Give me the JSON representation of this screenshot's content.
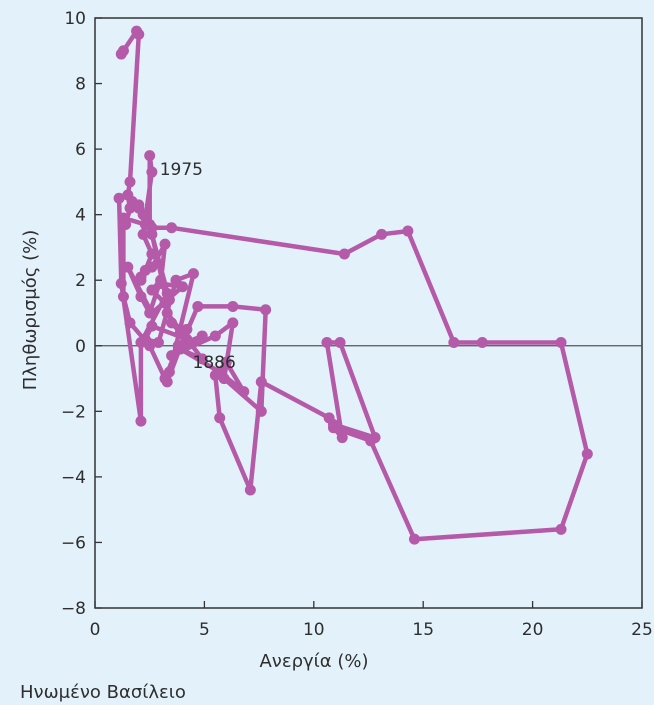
{
  "chart_data": {
    "type": "line",
    "title": "",
    "xlabel": "Ανεργία (%)",
    "ylabel": "Πληθωρισμός (%)",
    "xlim": [
      0,
      25
    ],
    "ylim": [
      -8,
      10
    ],
    "x_ticks": [
      0,
      5,
      10,
      15,
      20,
      25
    ],
    "y_ticks": [
      -8,
      -6,
      -4,
      -2,
      0,
      2,
      4,
      6,
      8,
      10
    ],
    "grid": false,
    "reference_line_y": 0,
    "footer": "Ηνωμένο Βασίλειο",
    "colors": {
      "series": "#b55aa8",
      "background": "#e3f2fa",
      "axis": "#333333"
    },
    "annotations": [
      {
        "text": "1975",
        "x": 2.5,
        "y": 5.4
      },
      {
        "text": "1886",
        "x": 4.0,
        "y": -0.5
      }
    ],
    "series": [
      {
        "x": [
          1.2,
          1.3,
          1.9,
          2.0,
          1.6,
          1.5,
          1.6,
          1.4,
          1.7,
          2.0,
          2.5,
          2.5,
          2.6,
          2.2,
          2.6,
          2.3,
          2.1,
          2.1,
          2.6,
          3.2,
          3.0,
          4.0,
          2.6,
          1.5,
          2.1,
          2.5,
          3.0,
          2.6,
          3.2,
          3.4,
          2.6,
          3.5,
          3.9,
          4.2,
          2.6,
          2.3,
          2.9,
          3.7,
          4.5,
          3.3,
          4.2,
          3.4,
          4.7,
          6.3,
          7.8,
          7.6,
          5.9,
          6.3,
          5.5,
          3.5,
          4.9,
          3.8,
          3.2,
          2.5,
          1.6,
          1.3,
          1.3,
          2.3,
          2.0,
          2.2,
          2.6,
          3.5,
          11.4,
          13.1,
          14.3,
          16.4,
          17.7,
          21.3,
          22.5,
          21.3,
          14.6,
          12.6,
          10.9,
          11.3,
          10.6,
          11.2,
          12.8,
          10.9,
          10.7,
          7.6,
          7.1,
          5.7,
          5.5,
          6.0,
          6.8,
          5.7,
          3.9,
          4.9,
          3.3,
          3.3,
          2.1,
          2.1,
          1.2,
          1.1
        ],
        "y": [
          8.9,
          9.0,
          9.6,
          9.5,
          5.0,
          4.6,
          4.2,
          3.7,
          4.4,
          4.3,
          3.7,
          5.8,
          5.3,
          3.4,
          2.8,
          2.3,
          2.0,
          2.1,
          2.4,
          3.1,
          1.9,
          1.8,
          1.0,
          2.4,
          1.5,
          1.0,
          2.0,
          1.7,
          1.3,
          1.4,
          3.4,
          0.7,
          0.4,
          0.2,
          0.6,
          0.2,
          0.1,
          2.0,
          2.2,
          -1.1,
          0.5,
          -0.8,
          1.2,
          1.2,
          1.1,
          -2.0,
          -1.0,
          0.7,
          0.3,
          -0.3,
          0.3,
          0.0,
          -1.0,
          0.0,
          0.7,
          1.5,
          3.9,
          3.7,
          4.2,
          4.0,
          3.6,
          3.6,
          2.8,
          3.4,
          3.5,
          0.1,
          0.1,
          0.1,
          -3.3,
          -5.6,
          -5.9,
          -2.9,
          -2.5,
          -2.8,
          0.1,
          0.1,
          -2.8,
          -2.4,
          -2.2,
          -1.1,
          -4.4,
          -2.2,
          -0.9,
          -0.5,
          -1.4,
          -0.8,
          -0.1,
          -0.4,
          1.0,
          1.6,
          0.1,
          -2.3,
          1.9,
          4.5
        ]
      }
    ]
  }
}
